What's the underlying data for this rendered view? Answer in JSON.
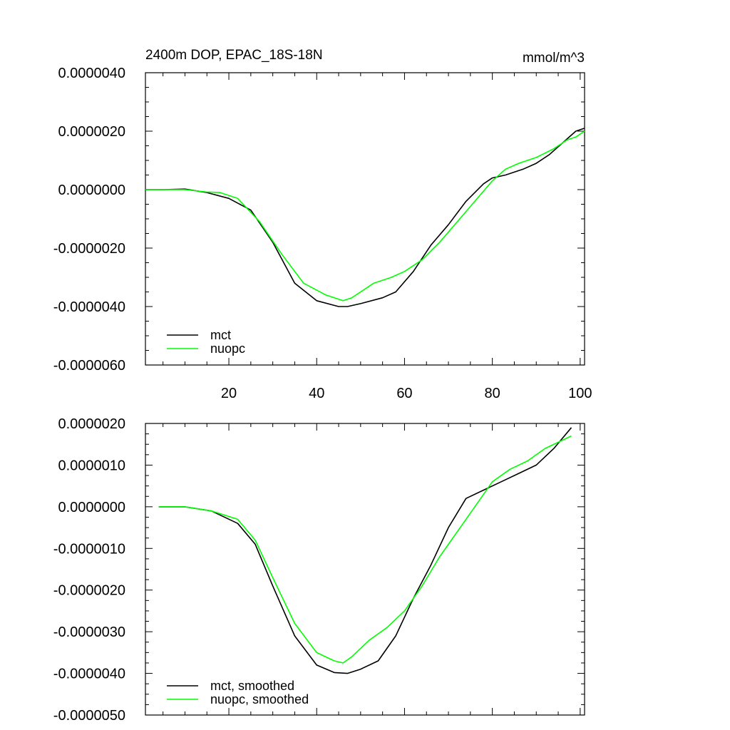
{
  "chart_data": [
    {
      "type": "line",
      "title": "2400m DOP, EPAC_18S-18N",
      "units": "mmol/m^3",
      "xlim": [
        1,
        101
      ],
      "ylim": [
        -6e-06,
        4e-06
      ],
      "x_ticks": [
        20,
        40,
        60,
        80,
        100
      ],
      "x_tick_labels": [
        "20",
        "40",
        "60",
        "80",
        "100"
      ],
      "y_ticks": [
        4e-06,
        2e-06,
        0,
        -2e-06,
        -4e-06,
        -6e-06
      ],
      "y_tick_labels": [
        "0.0000040",
        "0.0000020",
        "0.0000000",
        "-0.0000020",
        "-0.0000040",
        "-0.0000060"
      ],
      "legend_position": "bottom-left",
      "series": [
        {
          "name": "mct",
          "color": "#000000",
          "x": [
            1,
            5,
            10,
            15,
            20,
            25,
            30,
            35,
            40,
            45,
            47,
            50,
            55,
            58,
            62,
            66,
            70,
            74,
            78,
            80,
            83,
            87,
            90,
            93,
            96,
            99,
            101
          ],
          "y": [
            0,
            0,
            2e-08,
            -1e-07,
            -3e-07,
            -7e-07,
            -1.8e-06,
            -3.2e-06,
            -3.8e-06,
            -4e-06,
            -4e-06,
            -3.9e-06,
            -3.7e-06,
            -3.5e-06,
            -2.8e-06,
            -1.9e-06,
            -1.2e-06,
            -4e-07,
            2e-07,
            4e-07,
            5e-07,
            7e-07,
            9e-07,
            1.2e-06,
            1.6e-06,
            2e-06,
            2.1e-06
          ]
        },
        {
          "name": "nuopc",
          "color": "#00ff00",
          "x": [
            1,
            5,
            10,
            15,
            18,
            22,
            27,
            32,
            37,
            42,
            46,
            48,
            50,
            53,
            57,
            60,
            64,
            68,
            72,
            76,
            80,
            83,
            86,
            90,
            94,
            97,
            99,
            101
          ],
          "y": [
            0,
            0,
            0,
            -8e-08,
            -1e-07,
            -3e-07,
            -1.1e-06,
            -2.2e-06,
            -3.2e-06,
            -3.6e-06,
            -3.8e-06,
            -3.7e-06,
            -3.5e-06,
            -3.2e-06,
            -3e-06,
            -2.8e-06,
            -2.4e-06,
            -1.8e-06,
            -1.1e-06,
            -4e-07,
            3e-07,
            7e-07,
            9e-07,
            1.1e-06,
            1.4e-06,
            1.7e-06,
            1.8e-06,
            2e-06
          ]
        }
      ]
    },
    {
      "type": "line",
      "xlim": [
        1,
        101
      ],
      "ylim": [
        -5e-06,
        2e-06
      ],
      "y_ticks": [
        2e-06,
        1e-06,
        0,
        -1e-06,
        -2e-06,
        -3e-06,
        -4e-06,
        -5e-06
      ],
      "y_tick_labels": [
        "0.0000020",
        "0.0000010",
        "0.0000000",
        "-0.0000010",
        "-0.0000020",
        "-0.0000030",
        "-0.0000040",
        "-0.0000050"
      ],
      "legend_position": "bottom-left",
      "series": [
        {
          "name": "mct, smoothed",
          "color": "#000000",
          "x": [
            4,
            10,
            16,
            22,
            26,
            30,
            35,
            40,
            44,
            47,
            50,
            54,
            58,
            62,
            66,
            70,
            74,
            78,
            82,
            86,
            90,
            94,
            98
          ],
          "y": [
            0,
            0,
            -1e-07,
            -4e-07,
            -9e-07,
            -1.9e-06,
            -3.1e-06,
            -3.8e-06,
            -3.98e-06,
            -4e-06,
            -3.9e-06,
            -3.7e-06,
            -3.1e-06,
            -2.2e-06,
            -1.4e-06,
            -5e-07,
            2e-07,
            4e-07,
            6e-07,
            8e-07,
            1e-06,
            1.4e-06,
            1.9e-06
          ]
        },
        {
          "name": "nuopc, smoothed",
          "color": "#00ff00",
          "x": [
            4,
            10,
            16,
            22,
            26,
            30,
            35,
            40,
            44,
            46,
            48,
            52,
            56,
            60,
            64,
            68,
            72,
            76,
            80,
            84,
            88,
            92,
            96,
            98
          ],
          "y": [
            0,
            0,
            -1e-07,
            -3e-07,
            -8e-07,
            -1.7e-06,
            -2.8e-06,
            -3.5e-06,
            -3.7e-06,
            -3.75e-06,
            -3.6e-06,
            -3.2e-06,
            -2.9e-06,
            -2.5e-06,
            -1.9e-06,
            -1.2e-06,
            -6e-07,
            0,
            6e-07,
            9e-07,
            1.1e-06,
            1.4e-06,
            1.6e-06,
            1.7e-06
          ]
        }
      ]
    }
  ]
}
